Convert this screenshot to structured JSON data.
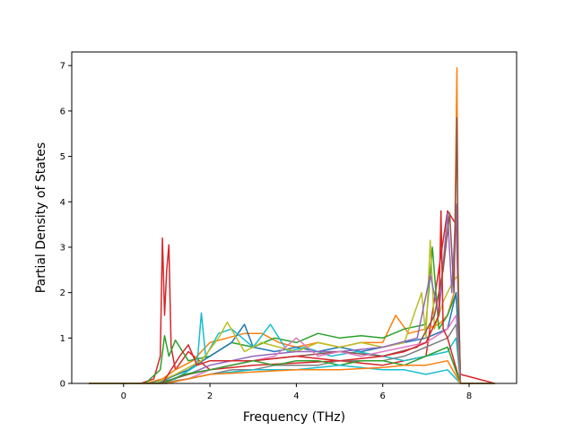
{
  "chart_data": {
    "type": "line",
    "title": "",
    "xlabel": "Frequency (THz)",
    "ylabel": "Partial Density of States",
    "xlim": [
      -1.2,
      9.1
    ],
    "ylim": [
      0,
      7.3
    ],
    "xticks": [
      "0",
      "2",
      "4",
      "6",
      "8"
    ],
    "yticks": [
      "0",
      "1",
      "2",
      "3",
      "4",
      "5",
      "6",
      "7"
    ],
    "grid": false,
    "legend": "none",
    "series": [
      {
        "color": "#d62728",
        "x": [
          -0.8,
          0.4,
          0.7,
          0.85,
          0.9,
          0.95,
          1.0,
          1.05,
          1.1,
          1.2,
          1.5,
          2.0,
          3.0,
          4.0,
          5.0,
          6.0,
          7.0,
          7.5,
          7.7,
          7.8,
          8.6
        ],
        "y": [
          0,
          0,
          0.1,
          0.6,
          3.2,
          1.5,
          2.5,
          3.05,
          0.8,
          0.3,
          0.7,
          0.3,
          0.4,
          0.45,
          0.5,
          0.4,
          0.6,
          3.8,
          3.5,
          0.2,
          0
        ]
      },
      {
        "color": "#ff7f0e",
        "x": [
          -0.8,
          0.5,
          0.9,
          1.2,
          1.6,
          2.0,
          2.4,
          2.8,
          3.2,
          3.6,
          4.0,
          4.5,
          5.0,
          5.5,
          6.0,
          6.3,
          6.6,
          7.0,
          7.3,
          7.5,
          7.65,
          7.72,
          7.75,
          7.8,
          8.6
        ],
        "y": [
          0,
          0,
          0.1,
          0.3,
          0.5,
          0.9,
          1.0,
          1.1,
          1.1,
          0.9,
          0.8,
          0.9,
          0.8,
          0.9,
          0.9,
          1.5,
          1.1,
          1.2,
          1.3,
          1.5,
          2.0,
          6.95,
          1.5,
          0,
          0
        ]
      },
      {
        "color": "#2ca02c",
        "x": [
          -0.8,
          0.5,
          0.85,
          0.95,
          1.05,
          1.2,
          1.5,
          2.0,
          2.5,
          3.0,
          3.5,
          4.0,
          4.5,
          5.0,
          5.5,
          6.0,
          6.5,
          7.0,
          7.15,
          7.3,
          7.5,
          7.7,
          7.8,
          8.6
        ],
        "y": [
          0,
          0,
          0.3,
          1.05,
          0.6,
          0.95,
          0.5,
          0.6,
          0.9,
          0.8,
          1.0,
          0.9,
          1.1,
          1.0,
          1.05,
          1.0,
          1.2,
          1.3,
          3.0,
          1.2,
          1.5,
          2.0,
          0,
          0
        ]
      },
      {
        "color": "#1f77b4",
        "x": [
          -0.8,
          0.6,
          1.0,
          1.5,
          2.0,
          2.5,
          2.8,
          3.0,
          3.5,
          4.0,
          4.5,
          5.0,
          5.5,
          6.0,
          6.5,
          7.0,
          7.5,
          7.7,
          7.8,
          8.6
        ],
        "y": [
          0,
          0,
          0.1,
          0.3,
          0.6,
          0.9,
          1.3,
          0.8,
          0.7,
          0.8,
          0.7,
          0.8,
          0.7,
          0.8,
          0.9,
          1.0,
          1.2,
          2.0,
          0,
          0
        ]
      },
      {
        "color": "#17becf",
        "x": [
          -0.8,
          0.6,
          1.2,
          1.7,
          1.8,
          1.9,
          2.2,
          2.5,
          3.0,
          3.4,
          3.8,
          4.2,
          4.8,
          5.4,
          6.0,
          6.5,
          7.0,
          7.5,
          7.7,
          7.8,
          8.6
        ],
        "y": [
          0,
          0,
          0.1,
          0.4,
          1.55,
          0.6,
          1.1,
          1.2,
          0.8,
          1.3,
          0.7,
          0.8,
          0.6,
          0.7,
          0.6,
          0.5,
          0.6,
          0.7,
          1.0,
          0,
          0
        ]
      },
      {
        "color": "#bcbd22",
        "x": [
          -0.8,
          0.7,
          1.2,
          1.8,
          2.2,
          2.4,
          2.8,
          3.2,
          3.6,
          4.0,
          4.5,
          5.0,
          5.5,
          6.0,
          6.5,
          6.9,
          7.0,
          7.1,
          7.2,
          7.4,
          7.6,
          7.75,
          7.8,
          8.6
        ],
        "y": [
          0,
          0,
          0.2,
          0.5,
          1.0,
          1.35,
          0.7,
          0.9,
          0.8,
          0.7,
          0.9,
          0.8,
          0.9,
          0.8,
          0.9,
          2.0,
          1.0,
          3.15,
          1.2,
          1.8,
          2.2,
          2.4,
          0,
          0
        ]
      },
      {
        "color": "#9467bd",
        "x": [
          -0.8,
          0.8,
          1.5,
          2.0,
          3.0,
          4.0,
          5.0,
          6.0,
          6.8,
          7.1,
          7.3,
          7.5,
          7.6,
          7.7,
          7.8,
          8.6
        ],
        "y": [
          0,
          0,
          0.2,
          0.4,
          0.6,
          0.7,
          0.7,
          0.8,
          1.0,
          2.4,
          1.5,
          3.75,
          2.0,
          3.95,
          0,
          0
        ]
      },
      {
        "color": "#8c564b",
        "x": [
          -0.8,
          0.8,
          1.5,
          2.0,
          3.0,
          4.0,
          5.0,
          6.0,
          6.8,
          7.2,
          7.4,
          7.55,
          7.65,
          7.72,
          7.75,
          7.8,
          8.6
        ],
        "y": [
          0,
          0,
          0.2,
          0.3,
          0.5,
          0.6,
          0.7,
          0.6,
          0.8,
          1.5,
          2.5,
          3.75,
          2.0,
          5.85,
          2.0,
          0,
          0
        ]
      },
      {
        "color": "#e377c2",
        "x": [
          -0.8,
          0.8,
          1.5,
          2.0,
          2.5,
          3.0,
          3.5,
          4.0,
          4.5,
          5.0,
          5.5,
          6.0,
          6.5,
          7.0,
          7.5,
          7.7,
          7.8,
          8.6
        ],
        "y": [
          0,
          0,
          0.1,
          0.3,
          0.4,
          0.5,
          0.6,
          1.0,
          0.6,
          0.7,
          0.6,
          0.7,
          0.8,
          0.9,
          1.2,
          1.5,
          0,
          0
        ]
      },
      {
        "color": "#7f7f7f",
        "x": [
          -0.8,
          0.8,
          1.5,
          2.0,
          2.5,
          3.0,
          3.5,
          4.0,
          4.5,
          5.0,
          5.5,
          6.0,
          6.5,
          7.0,
          7.5,
          7.7,
          7.8,
          8.6
        ],
        "y": [
          0,
          0,
          0.1,
          0.2,
          0.3,
          0.3,
          0.4,
          0.4,
          0.4,
          0.5,
          0.5,
          0.5,
          0.6,
          0.8,
          1.0,
          1.3,
          0,
          0
        ]
      },
      {
        "color": "#d62728",
        "x": [
          -0.8,
          0.9,
          1.3,
          1.5,
          1.7,
          2.0,
          3.0,
          4.0,
          5.0,
          6.0,
          6.5,
          7.0,
          7.3,
          7.35,
          7.4,
          7.5,
          7.8,
          8.6
        ],
        "y": [
          0,
          0,
          0.6,
          0.85,
          0.4,
          0.5,
          0.5,
          0.6,
          0.5,
          0.6,
          0.7,
          0.9,
          1.5,
          3.8,
          1.2,
          1.0,
          0,
          0
        ]
      },
      {
        "color": "#2ca02c",
        "x": [
          -0.8,
          0.9,
          1.4,
          2.0,
          2.5,
          3.0,
          3.5,
          4.0,
          4.5,
          5.0,
          5.5,
          6.0,
          6.5,
          7.0,
          7.5,
          7.8,
          8.6
        ],
        "y": [
          0,
          0,
          0.2,
          0.3,
          0.4,
          0.5,
          0.4,
          0.5,
          0.5,
          0.4,
          0.5,
          0.5,
          0.4,
          0.6,
          0.8,
          0,
          0
        ]
      },
      {
        "color": "#17becf",
        "x": [
          -0.8,
          1.0,
          1.5,
          2.0,
          3.0,
          4.0,
          5.0,
          6.0,
          6.5,
          7.0,
          7.5,
          7.8,
          8.6
        ],
        "y": [
          0,
          0,
          0.1,
          0.2,
          0.3,
          0.3,
          0.4,
          0.3,
          0.3,
          0.2,
          0.3,
          0,
          0
        ]
      },
      {
        "color": "#ff7f0e",
        "x": [
          -0.8,
          1.0,
          1.5,
          2.0,
          3.0,
          4.0,
          5.0,
          6.0,
          6.5,
          7.0,
          7.5,
          7.8,
          8.6
        ],
        "y": [
          0,
          0,
          0.1,
          0.2,
          0.25,
          0.3,
          0.3,
          0.35,
          0.4,
          0.4,
          0.5,
          0,
          0
        ]
      }
    ]
  }
}
